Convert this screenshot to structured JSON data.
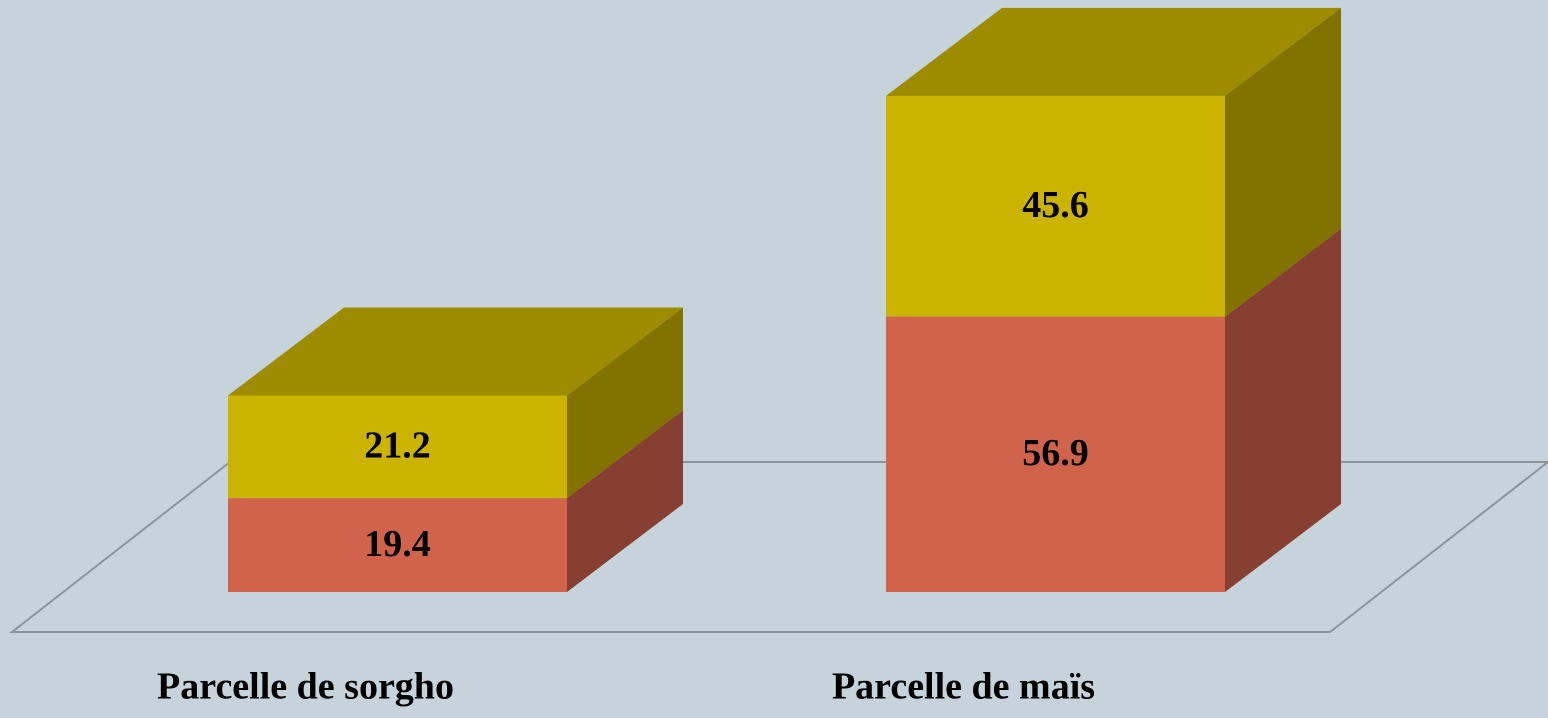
{
  "chart_data": {
    "type": "bar3d_stacked",
    "categories": [
      "Parcelle de sorgho",
      "Parcelle de maïs"
    ],
    "series": [
      {
        "color": "#d1634b",
        "values": [
          19.4,
          56.9
        ]
      },
      {
        "color": "#cbb400",
        "values": [
          21.2,
          45.6
        ]
      }
    ]
  }
}
